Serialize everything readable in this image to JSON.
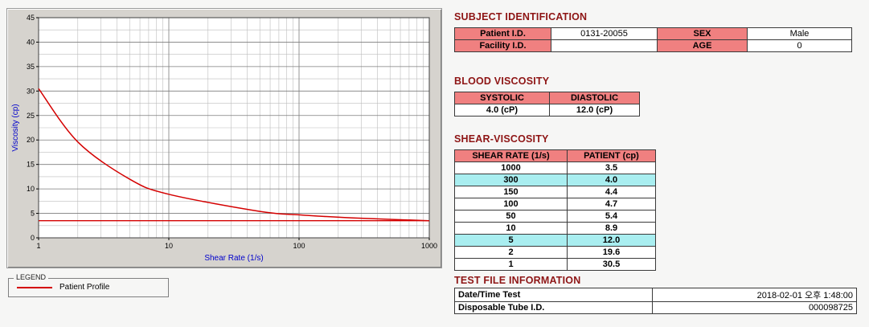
{
  "chart_data": {
    "type": "line",
    "series_name": "Patient Profile",
    "x": [
      1,
      2,
      5,
      10,
      50,
      100,
      150,
      300,
      1000
    ],
    "y": [
      30.5,
      19.6,
      12.0,
      8.9,
      5.4,
      4.7,
      4.4,
      4.0,
      3.5
    ],
    "xlabel": "Shear Rate (1/s)",
    "ylabel": "Viscosity (cp)",
    "x_scale": "log",
    "xlim": [
      1,
      1000
    ],
    "ylim": [
      0,
      45
    ],
    "xticks": [
      1,
      10,
      100,
      1000
    ],
    "yticks": [
      0,
      5,
      10,
      15,
      20,
      25,
      30,
      35,
      40,
      45
    ],
    "reference_line_y": 3.5,
    "line_color": "#d40000",
    "grid": "on",
    "legend_position": "below-left"
  },
  "legend": {
    "title": "LEGEND",
    "series": "Patient Profile"
  },
  "subject": {
    "title": "SUBJECT IDENTIFICATION",
    "rows": [
      {
        "label1": "Patient I.D.",
        "value1": "0131-20055",
        "label2": "SEX",
        "value2": "Male"
      },
      {
        "label1": "Facility I.D.",
        "value1": "",
        "label2": "AGE",
        "value2": "0"
      }
    ]
  },
  "blood_viscosity": {
    "title": "BLOOD VISCOSITY",
    "headers": [
      "SYSTOLIC",
      "DIASTOLIC"
    ],
    "values": [
      "4.0 (cP)",
      "12.0 (cP)"
    ]
  },
  "shear_viscosity": {
    "title": "SHEAR-VISCOSITY",
    "headers": [
      "SHEAR RATE (1/s)",
      "PATIENT (cp)"
    ],
    "rows": [
      {
        "rate": "1000",
        "value": "3.5"
      },
      {
        "rate": "300",
        "value": "4.0"
      },
      {
        "rate": "150",
        "value": "4.4"
      },
      {
        "rate": "100",
        "value": "4.7"
      },
      {
        "rate": "50",
        "value": "5.4"
      },
      {
        "rate": "10",
        "value": "8.9"
      },
      {
        "rate": "5",
        "value": "12.0"
      },
      {
        "rate": "2",
        "value": "19.6"
      },
      {
        "rate": "1",
        "value": "30.5"
      }
    ]
  },
  "test_file": {
    "title": "TEST FILE INFORMATION",
    "rows": [
      {
        "label": "Date/Time Test",
        "value": "2018-02-01  오후 1:48:00"
      },
      {
        "label": "Disposable Tube I.D.",
        "value": "000098725"
      }
    ]
  }
}
